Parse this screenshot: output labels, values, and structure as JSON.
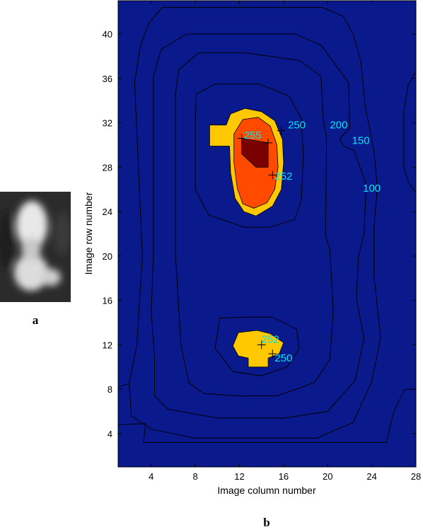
{
  "panels": {
    "a": "a",
    "b": "b"
  },
  "chart_data": {
    "type": "heatmap",
    "title": "",
    "xlabel": "Image column number",
    "ylabel": "Image row number",
    "xlim": [
      1,
      28
    ],
    "ylim": [
      1,
      43
    ],
    "xticks": [
      4,
      8,
      12,
      16,
      20,
      24,
      28
    ],
    "yticks": [
      4,
      8,
      12,
      16,
      20,
      24,
      28,
      32,
      36,
      40
    ],
    "grid": false,
    "colors": {
      "background": "#0a1a8c",
      "level_250": "#ffc800",
      "level_252": "#ff4a00",
      "level_255": "#7a0000",
      "contour_line": "#000000",
      "label": "#00e5ee"
    },
    "contour_levels": [
      100,
      150,
      200,
      250,
      252,
      255
    ],
    "contour_labels": [
      {
        "text": "255",
        "x": 13.2,
        "y": 30.9
      },
      {
        "text": "250",
        "x": 17.2,
        "y": 31.8
      },
      {
        "text": "200",
        "x": 21.0,
        "y": 31.8
      },
      {
        "text": "150",
        "x": 23.0,
        "y": 30.4
      },
      {
        "text": "100",
        "x": 24.0,
        "y": 26.1
      },
      {
        "text": "252",
        "x": 16.0,
        "y": 27.2
      },
      {
        "text": "252",
        "x": 14.8,
        "y": 12.5
      },
      {
        "text": "250",
        "x": 16.0,
        "y": 10.8
      }
    ],
    "markers": [
      {
        "x": 12.2,
        "y": 30.6
      },
      {
        "x": 14.6,
        "y": 30.2
      },
      {
        "x": 15.8,
        "y": 31.3
      },
      {
        "x": 15.0,
        "y": 27.3
      },
      {
        "x": 14.0,
        "y": 12.0
      },
      {
        "x": 15.0,
        "y": 11.2
      }
    ]
  }
}
